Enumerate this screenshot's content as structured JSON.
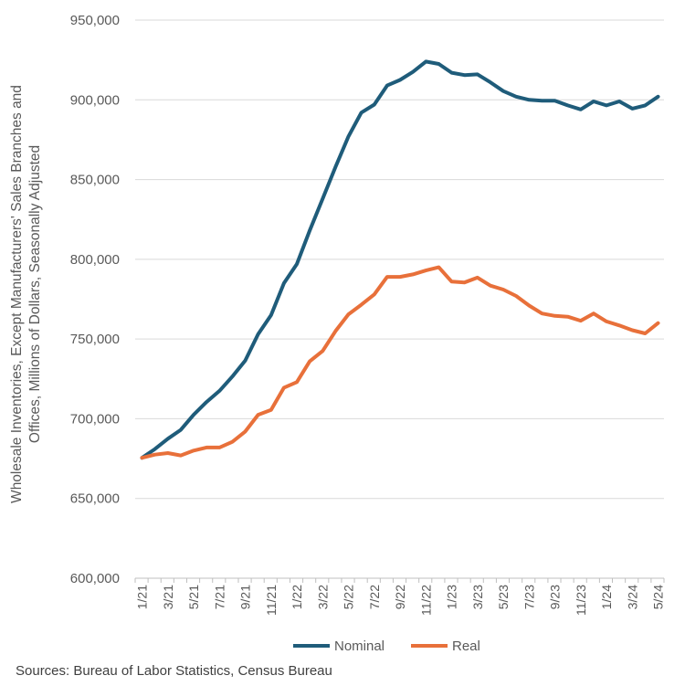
{
  "chart_data": {
    "type": "line",
    "ylabel_lines": [
      "Wholesale Inventories, Except Manufacturers' Sales Branches and",
      "Offices, Millions of Dollars, Seasonally Adjusted"
    ],
    "ylim": [
      600000,
      950000
    ],
    "yticks": [
      "600,000",
      "650,000",
      "700,000",
      "750,000",
      "800,000",
      "850,000",
      "900,000",
      "950,000"
    ],
    "xtick_labels": [
      "1/21",
      "3/21",
      "5/21",
      "7/21",
      "9/21",
      "11/21",
      "1/22",
      "3/22",
      "5/22",
      "7/22",
      "9/22",
      "11/22",
      "1/23",
      "3/23",
      "5/23",
      "7/23",
      "9/23",
      "11/23",
      "1/24",
      "3/24",
      "5/24"
    ],
    "grid": "horizontal",
    "legend_position": "bottom",
    "x": [
      "2021-01",
      "2021-02",
      "2021-03",
      "2021-04",
      "2021-05",
      "2021-06",
      "2021-07",
      "2021-08",
      "2021-09",
      "2021-10",
      "2021-11",
      "2021-12",
      "2022-01",
      "2022-02",
      "2022-03",
      "2022-04",
      "2022-05",
      "2022-06",
      "2022-07",
      "2022-08",
      "2022-09",
      "2022-10",
      "2022-11",
      "2022-12",
      "2023-01",
      "2023-02",
      "2023-03",
      "2023-04",
      "2023-05",
      "2023-06",
      "2023-07",
      "2023-08",
      "2023-09",
      "2023-10",
      "2023-11",
      "2023-12",
      "2024-01",
      "2024-02",
      "2024-03",
      "2024-04",
      "2024-05"
    ],
    "series": [
      {
        "name": "Nominal",
        "color": "#1F5C7A",
        "values": [
          675500,
          681000,
          687500,
          693000,
          702500,
          710500,
          717500,
          726500,
          736500,
          753000,
          765000,
          785000,
          797000,
          818000,
          838000,
          858000,
          877000,
          892000,
          897000,
          909000,
          912500,
          917500,
          924000,
          922500,
          917000,
          915500,
          916000,
          911000,
          905500,
          902000,
          900000,
          899500,
          899500,
          896500,
          894000,
          899000,
          896500,
          899000,
          894500,
          896500,
          902000
        ]
      },
      {
        "name": "Real",
        "color": "#E8703A",
        "values": [
          675500,
          677500,
          678500,
          677000,
          680000,
          682000,
          682000,
          685500,
          692000,
          702500,
          705500,
          719500,
          723000,
          736000,
          742500,
          755000,
          765500,
          771500,
          778000,
          789000,
          789000,
          790500,
          793000,
          795000,
          786000,
          785500,
          788500,
          783500,
          781000,
          777000,
          771000,
          766000,
          764500,
          764000,
          761500,
          766000,
          761000,
          758500,
          755500,
          753500,
          760000
        ]
      }
    ]
  },
  "legend": {
    "nominal_label": "Nominal",
    "real_label": "Real"
  },
  "source_text": "Sources: Bureau of Labor Statistics, Census Bureau"
}
